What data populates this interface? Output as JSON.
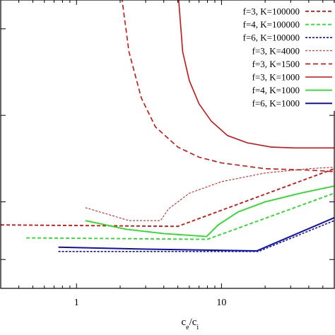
{
  "chart_data": {
    "type": "line",
    "xlabel_main": "c",
    "xlabel_sub1": "e",
    "xlabel_slash": "/c",
    "xlabel_sub2": "i",
    "xscale": "log",
    "xlim": [
      0.3,
      60
    ],
    "ylim": [
      0,
      1
    ],
    "x_ticks": [
      {
        "value": 1,
        "label": "1"
      },
      {
        "value": 10,
        "label": "10"
      }
    ],
    "y_ticks_unlabeled": [
      0.1,
      0.3,
      0.6,
      0.9
    ],
    "grid": false,
    "legend_position": "top-right",
    "series": [
      {
        "name": "f=3, K=100000",
        "color": "#cc1111",
        "dash": "5,3",
        "width": 1.8,
        "points": [
          [
            0.3,
            0.22
          ],
          [
            5.0,
            0.215
          ],
          [
            60,
            0.415
          ]
        ]
      },
      {
        "name": "f=4, K=100000",
        "color": "#22dd22",
        "dash": "5,3",
        "width": 1.8,
        "points": [
          [
            0.45,
            0.175
          ],
          [
            8.0,
            0.17
          ],
          [
            60,
            0.33
          ]
        ]
      },
      {
        "name": "f=6, K=100000",
        "color": "#1111aa",
        "dash": "3,2",
        "width": 1.6,
        "points": [
          [
            0.75,
            0.128
          ],
          [
            18.0,
            0.128
          ],
          [
            60,
            0.235
          ]
        ]
      },
      {
        "name": "f=3, K=4000",
        "color": "#cc1111",
        "dash": "3,2",
        "width": 1.0,
        "points": [
          [
            1.15,
            0.28
          ],
          [
            2.3,
            0.235
          ],
          [
            3.8,
            0.235
          ],
          [
            4.3,
            0.275
          ],
          [
            6,
            0.33
          ],
          [
            10,
            0.37
          ],
          [
            20,
            0.4
          ],
          [
            40,
            0.415
          ],
          [
            60,
            0.42
          ]
        ]
      },
      {
        "name": "f=3, K=1500",
        "color": "#cc1111",
        "dash": "7,4",
        "width": 1.6,
        "points": [
          [
            2.05,
            1.01
          ],
          [
            2.3,
            0.82
          ],
          [
            2.8,
            0.66
          ],
          [
            3.5,
            0.56
          ],
          [
            5,
            0.49
          ],
          [
            7,
            0.455
          ],
          [
            10,
            0.435
          ],
          [
            20,
            0.415
          ],
          [
            40,
            0.41
          ],
          [
            60,
            0.405
          ]
        ]
      },
      {
        "name": "f=3, K=1000",
        "color": "#cc1111",
        "dash": "",
        "width": 1.6,
        "points": [
          [
            5.05,
            1.01
          ],
          [
            5.4,
            0.82
          ],
          [
            6,
            0.72
          ],
          [
            7,
            0.64
          ],
          [
            8.5,
            0.58
          ],
          [
            11,
            0.53
          ],
          [
            15,
            0.505
          ],
          [
            22,
            0.49
          ],
          [
            32,
            0.487
          ],
          [
            60,
            0.487
          ]
        ]
      },
      {
        "name": "f=4, K=1000",
        "color": "#22dd22",
        "dash": "",
        "width": 1.8,
        "points": [
          [
            1.15,
            0.235
          ],
          [
            2.2,
            0.205
          ],
          [
            4,
            0.19
          ],
          [
            7.9,
            0.18
          ],
          [
            9.5,
            0.22
          ],
          [
            13,
            0.265
          ],
          [
            20,
            0.3
          ],
          [
            35,
            0.33
          ],
          [
            60,
            0.355
          ]
        ]
      },
      {
        "name": "f=6, K=1000",
        "color": "#1111aa",
        "dash": "",
        "width": 2.0,
        "points": [
          [
            0.75,
            0.143
          ],
          [
            3,
            0.136
          ],
          [
            17.5,
            0.13
          ],
          [
            60,
            0.245
          ]
        ]
      }
    ]
  }
}
